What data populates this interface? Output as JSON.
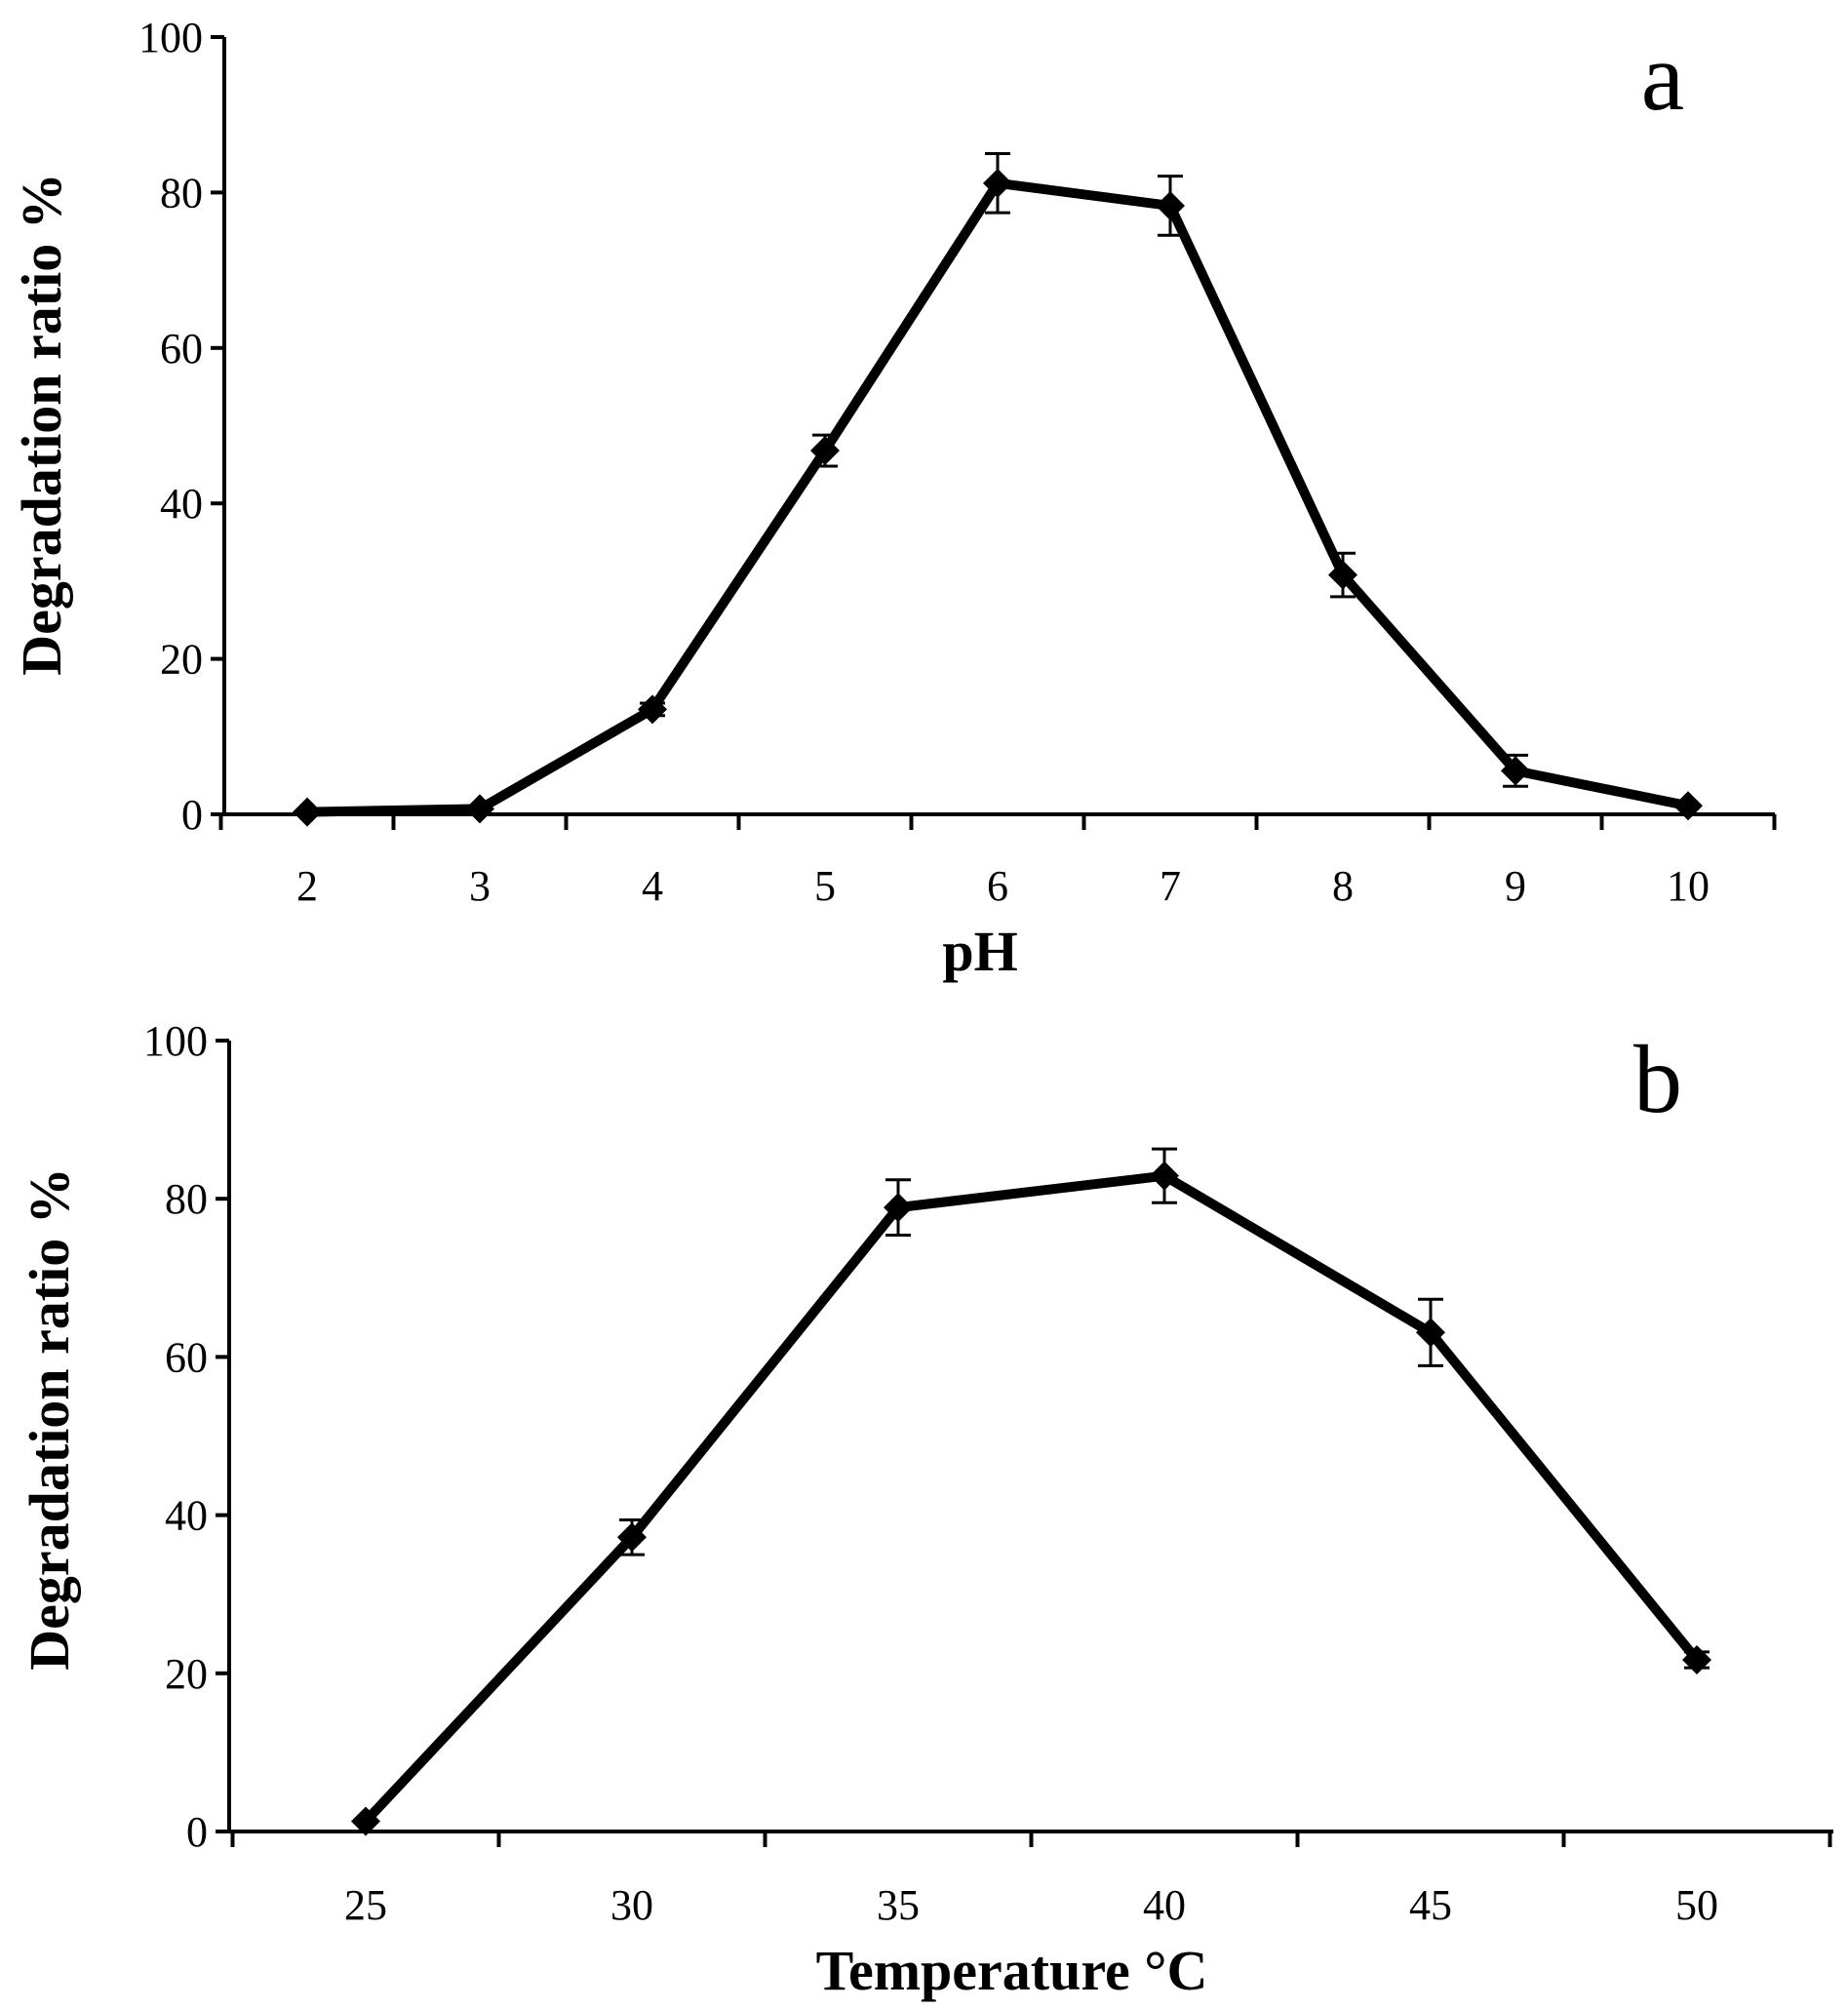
{
  "chart_data": [
    {
      "type": "line",
      "panel_label": "a",
      "xlabel": "pH",
      "ylabel": "Degradation ratio %",
      "categories": [
        "2",
        "3",
        "4",
        "5",
        "6",
        "7",
        "8",
        "9",
        "10"
      ],
      "values": [
        0.3,
        0.7,
        13.5,
        46.8,
        81.2,
        78.3,
        30.8,
        5.6,
        1.1
      ],
      "errors": [
        0.4,
        0.4,
        0.8,
        2.0,
        3.8,
        3.8,
        2.8,
        2.0,
        0.6
      ],
      "ylim": [
        0,
        100
      ],
      "yticks": [
        "0",
        "20",
        "40",
        "60",
        "80",
        "100"
      ],
      "grid": false,
      "marker": "diamond"
    },
    {
      "type": "line",
      "panel_label": "b",
      "xlabel": "Temperature °C",
      "ylabel": "Degradation ratio %",
      "categories": [
        "25",
        "30",
        "35",
        "40",
        "45",
        "50"
      ],
      "values": [
        1.3,
        37.2,
        78.9,
        82.9,
        63.1,
        21.7
      ],
      "errors": [
        0.5,
        2.2,
        3.5,
        3.4,
        4.2,
        1.0
      ],
      "ylim": [
        0,
        100
      ],
      "yticks": [
        "0",
        "20",
        "40",
        "60",
        "80",
        "100"
      ],
      "grid": false,
      "marker": "diamond"
    }
  ]
}
